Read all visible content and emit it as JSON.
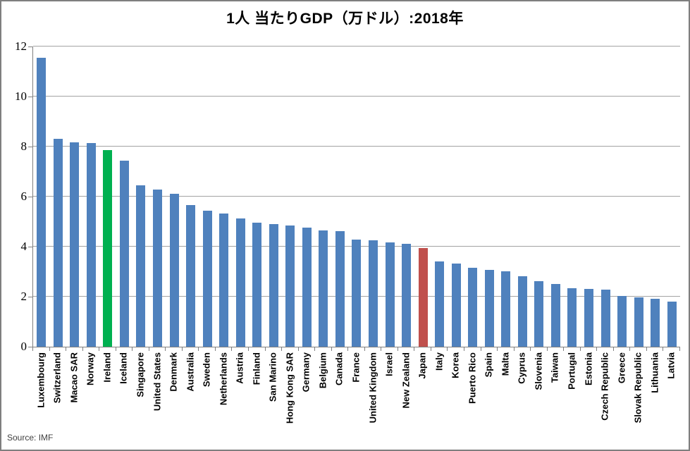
{
  "chart_data": {
    "type": "bar",
    "title": "1人 当たりGDP（万ドル）:2018年",
    "xlabel": "",
    "ylabel": "",
    "ylim": [
      0,
      12
    ],
    "ytick_step": 2,
    "yticks": [
      0,
      2,
      4,
      6,
      8,
      10,
      12
    ],
    "grid": true,
    "legend": false,
    "source": "Source: IMF",
    "default_bar_color": "#4F81BD",
    "bar_colors_by_category": {
      "Ireland": "#00B050",
      "Japan": "#C0504D"
    },
    "axis_color": "#808080",
    "gridline_color": "#A3A3A3",
    "categories": [
      "Luxembourg",
      "Switzerland",
      "Macao SAR",
      "Norway",
      "Ireland",
      "Iceland",
      "Singapore",
      "United States",
      "Denmark",
      "Australia",
      "Sweden",
      "Netherlands",
      "Austria",
      "Finland",
      "San Marino",
      "Hong Kong SAR",
      "Germany",
      "Belgium",
      "Canada",
      "France",
      "United Kingdom",
      "Israel",
      "New Zealand",
      "Japan",
      "Italy",
      "Korea",
      "Puerto Rico",
      "Spain",
      "Malta",
      "Cyprus",
      "Slovenia",
      "Taiwan",
      "Portugal",
      "Estonia",
      "Czech Republic",
      "Greece",
      "Slovak Republic",
      "Lithuania",
      "Latvia"
    ],
    "values": [
      11.55,
      8.3,
      8.17,
      8.15,
      7.85,
      7.45,
      6.46,
      6.29,
      6.1,
      5.65,
      5.44,
      5.31,
      5.14,
      4.97,
      4.89,
      4.84,
      4.77,
      4.66,
      4.62,
      4.29,
      4.25,
      4.16,
      4.11,
      3.93,
      3.42,
      3.33,
      3.16,
      3.06,
      3.02,
      2.81,
      2.61,
      2.5,
      2.34,
      2.31,
      2.28,
      2.02,
      1.96,
      1.91,
      1.8
    ]
  }
}
